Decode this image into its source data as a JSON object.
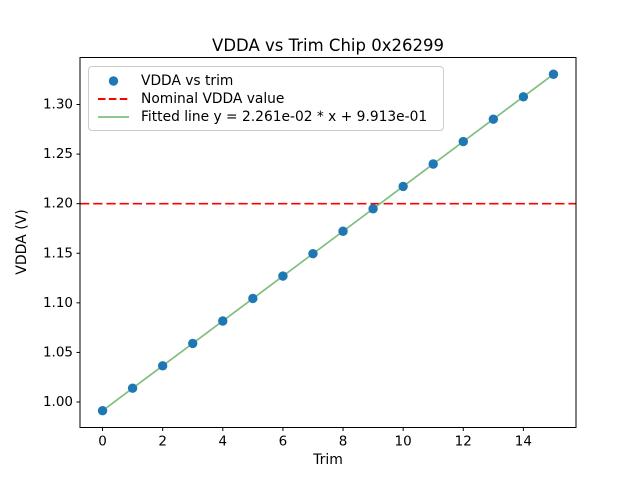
{
  "figure": {
    "background": "#ffffff",
    "text_color": "#000000",
    "spine_color": "#000000"
  },
  "chart_data": {
    "type": "scatter",
    "title": "VDDA vs Trim Chip 0x26299",
    "xlabel": "Trim",
    "ylabel": "VDDA (V)",
    "xlim": [
      -0.75,
      15.75
    ],
    "ylim": [
      0.9743,
      1.3474
    ],
    "grid": false,
    "xticks": [
      0,
      2,
      4,
      6,
      8,
      10,
      12,
      14
    ],
    "xtick_labels": [
      "0",
      "2",
      "4",
      "6",
      "8",
      "10",
      "12",
      "14"
    ],
    "yticks": [
      1.0,
      1.05,
      1.1,
      1.15,
      1.2,
      1.25,
      1.3
    ],
    "ytick_labels": [
      "1.00",
      "1.05",
      "1.10",
      "1.15",
      "1.20",
      "1.25",
      "1.30"
    ],
    "series": [
      {
        "name": "VDDA vs trim",
        "kind": "scatter",
        "color": "#1f77b4",
        "marker": "circle",
        "x": [
          0,
          1,
          2,
          3,
          4,
          5,
          6,
          7,
          8,
          9,
          10,
          11,
          12,
          13,
          14,
          15
        ],
        "y": [
          0.9913,
          1.0139,
          1.0365,
          1.0591,
          1.0817,
          1.1044,
          1.127,
          1.1496,
          1.1722,
          1.1948,
          1.2174,
          1.24,
          1.2626,
          1.2852,
          1.3078,
          1.3305
        ]
      },
      {
        "name": "Nominal VDDA value",
        "kind": "hline",
        "color": "#ff0000",
        "linestyle": "dashed",
        "y": 1.2
      },
      {
        "name": "Fitted line y = 2.261e-02 * x + 9.913e-01",
        "kind": "line",
        "color": "#7fbf7f",
        "slope": 0.02261,
        "intercept": 0.9913,
        "x_start": 0,
        "x_end": 15
      }
    ],
    "legend": {
      "position": "upper left",
      "entries": [
        {
          "label": "VDDA vs trim",
          "marker": "dot",
          "color": "#1f77b4"
        },
        {
          "label": "Nominal VDDA value",
          "marker": "dashed-line",
          "color": "#ff0000"
        },
        {
          "label": "Fitted line y = 2.261e-02 * x + 9.913e-01",
          "marker": "solid-line",
          "color": "#7fbf7f"
        }
      ]
    }
  }
}
